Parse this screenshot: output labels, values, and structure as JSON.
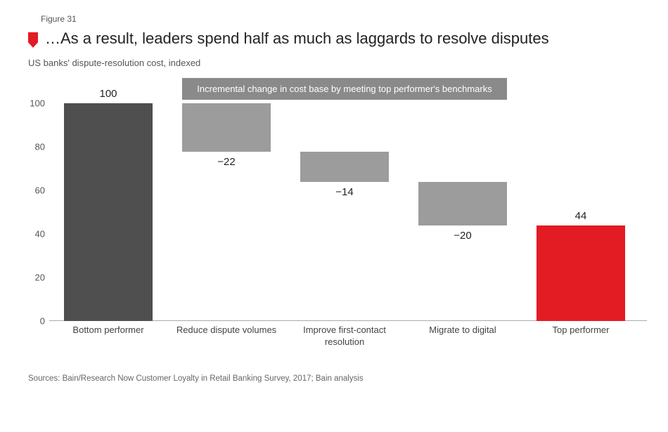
{
  "figure_label": "Figure 31",
  "title": "…As a result, leaders spend half as much as laggards to resolve disputes",
  "subtitle": "US banks' dispute-resolution cost, indexed",
  "banner_text": "Incremental change in cost base by meeting top performer's benchmarks",
  "sources": "Sources: Bain/Research Now Customer Loyalty in Retail Banking Survey, 2017; Bain analysis",
  "chart": {
    "type": "waterfall",
    "ylim": [
      0,
      100
    ],
    "ytick_step": 20,
    "yticks": [
      0,
      20,
      40,
      60,
      80,
      100
    ],
    "axis_color": "#aaaaaa",
    "tick_label_color": "#555555",
    "tick_fontsize": 13,
    "xlabel_fontsize": 13,
    "barlabel_fontsize": 15,
    "title_fontsize": 22,
    "background_color": "#ffffff",
    "bar_width_ratio": 0.75,
    "banner": {
      "bg_color": "#8a8a8a",
      "text_color": "#ffffff",
      "fontsize": 13,
      "span_start_idx": 1,
      "span_end_idx": 3
    },
    "bars": [
      {
        "label": "Bottom performer",
        "value_label": "100",
        "start": 0,
        "end": 100,
        "color": "#4f4f4f",
        "value_label_pos": "above"
      },
      {
        "label": "Reduce dispute volumes",
        "value_label": "−22",
        "start": 78,
        "end": 100,
        "color": "#9c9c9c",
        "value_label_pos": "below"
      },
      {
        "label": "Improve first-contact resolution",
        "value_label": "−14",
        "start": 64,
        "end": 78,
        "color": "#9c9c9c",
        "value_label_pos": "below"
      },
      {
        "label": "Migrate to digital",
        "value_label": "−20",
        "start": 44,
        "end": 64,
        "color": "#9c9c9c",
        "value_label_pos": "below"
      },
      {
        "label": "Top performer",
        "value_label": "44",
        "start": 0,
        "end": 44,
        "color": "#e31b23",
        "value_label_pos": "above"
      }
    ]
  }
}
